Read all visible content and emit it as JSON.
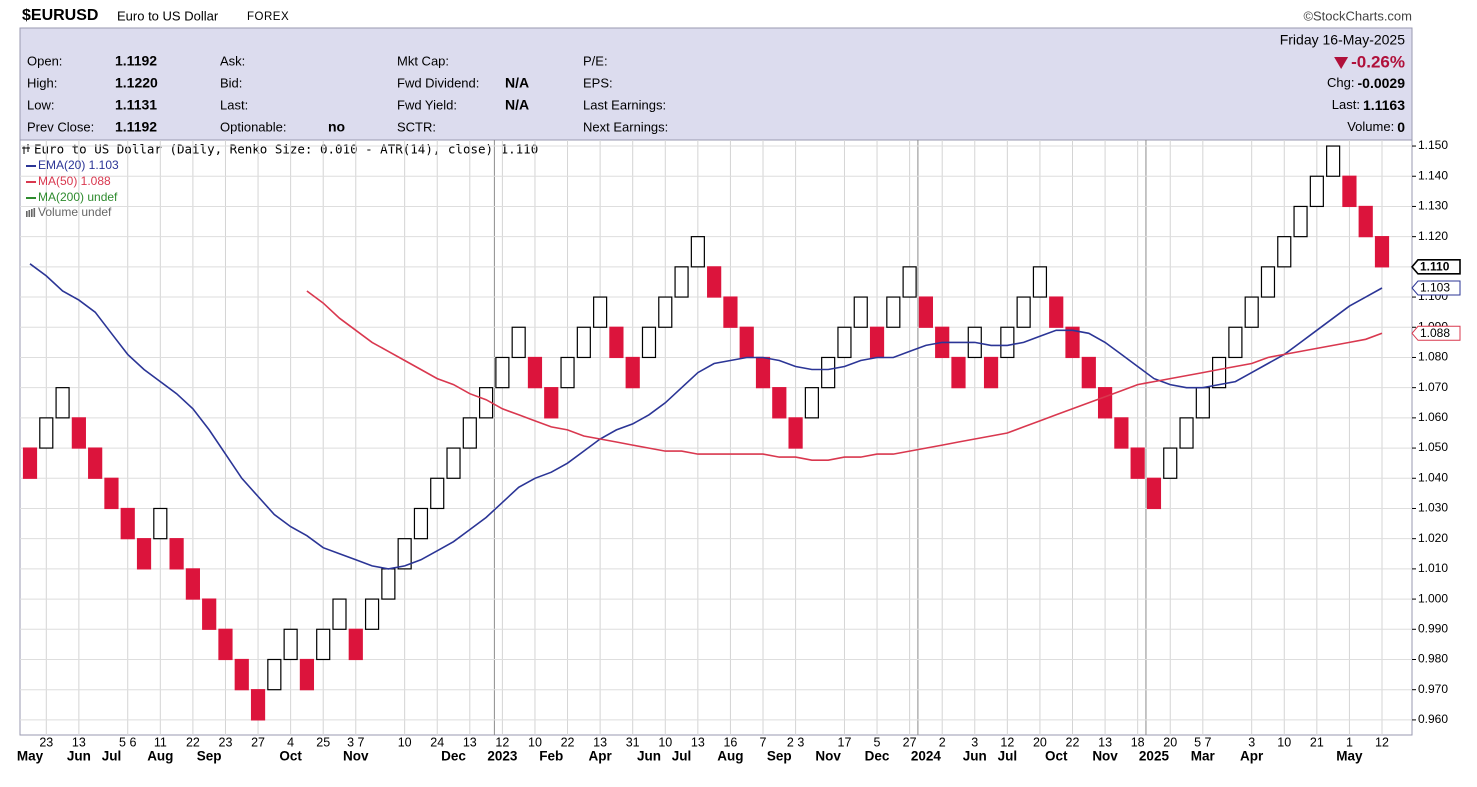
{
  "header": {
    "symbol": "$EURUSD",
    "name": "Euro to US Dollar",
    "exchange": "FOREX",
    "source": "©StockCharts.com"
  },
  "info": {
    "date": "Friday  16-May-2025",
    "change_pct": "-0.26%",
    "columns": [
      [
        {
          "label": "Open:",
          "value": "1.1192"
        },
        {
          "label": "High:",
          "value": "1.1220"
        },
        {
          "label": "Low:",
          "value": "1.1131"
        },
        {
          "label": "Prev Close:",
          "value": "1.1192"
        }
      ],
      [
        {
          "label": "Ask:"
        },
        {
          "label": "Bid:"
        },
        {
          "label": "Last:"
        },
        {
          "label": "Optionable:",
          "value": "no"
        }
      ],
      [
        {
          "label": "Mkt Cap:"
        },
        {
          "label": "Fwd Dividend:",
          "value": "N/A"
        },
        {
          "label": "Fwd Yield:",
          "value": "N/A"
        },
        {
          "label": "SCTR:"
        }
      ],
      [
        {
          "label": "P/E:"
        },
        {
          "label": "EPS:"
        },
        {
          "label": "Last Earnings:"
        },
        {
          "label": "Next Earnings:"
        }
      ]
    ],
    "summary": [
      {
        "label": "Chg:",
        "value": "-0.0029"
      },
      {
        "label": "Last:",
        "value": "1.1163"
      },
      {
        "label": "Volume:",
        "value": "0"
      }
    ]
  },
  "chart_data": {
    "type": "renko",
    "title": "Euro to US Dollar (Daily, Renko Size: 0.010 - ATR(14), close) 1.110",
    "last_label": "1.110",
    "up_color": "#ffffff",
    "down_color": "#dc143c",
    "categories": [
      null,
      "23",
      null,
      "13",
      null,
      null,
      "5 6",
      null,
      "11",
      null,
      "22",
      null,
      "23",
      null,
      "27",
      null,
      "4",
      null,
      "25",
      null,
      "3 7",
      null,
      null,
      "10",
      null,
      "24",
      null,
      "13",
      null,
      "12",
      null,
      "10",
      null,
      "22",
      null,
      "13",
      null,
      "31",
      null,
      "10",
      null,
      "13",
      null,
      "16",
      null,
      "7",
      null,
      "2 3",
      null,
      null,
      "17",
      null,
      "5",
      null,
      "27",
      null,
      "2",
      null,
      "3",
      null,
      "12",
      null,
      "20",
      null,
      "22",
      null,
      "13",
      null,
      "18",
      null,
      "20",
      null,
      "5 7",
      null,
      null,
      "3",
      null,
      "10",
      null,
      "21",
      null,
      "1",
      null,
      "12"
    ],
    "months": [
      "May",
      null,
      null,
      "Jun",
      null,
      "Jul",
      null,
      null,
      "Aug",
      null,
      null,
      "Sep",
      null,
      null,
      null,
      null,
      "Oct",
      null,
      null,
      null,
      "Nov",
      null,
      null,
      null,
      null,
      null,
      "Dec",
      null,
      null,
      "2023",
      null,
      null,
      "Feb",
      null,
      null,
      "Apr",
      null,
      null,
      "Jun",
      null,
      "Jul",
      null,
      null,
      "Aug",
      null,
      null,
      "Sep",
      null,
      null,
      "Nov",
      null,
      null,
      "Dec",
      null,
      null,
      "2024",
      null,
      null,
      "Jun",
      null,
      "Jul",
      null,
      null,
      "Oct",
      null,
      null,
      "Nov",
      null,
      null,
      "2025",
      null,
      null,
      "Mar",
      null,
      null,
      "Apr",
      null,
      null,
      null,
      null,
      null,
      "May",
      null,
      null
    ],
    "open": [
      1.05,
      1.05,
      1.06,
      1.06,
      1.05,
      1.04,
      1.03,
      1.02,
      1.02,
      1.02,
      1.01,
      1.0,
      0.99,
      0.98,
      0.97,
      0.97,
      0.98,
      0.98,
      0.98,
      0.99,
      0.99,
      0.99,
      1.0,
      1.01,
      1.02,
      1.03,
      1.04,
      1.05,
      1.06,
      1.07,
      1.08,
      1.08,
      1.07,
      1.07,
      1.08,
      1.09,
      1.09,
      1.08,
      1.08,
      1.09,
      1.1,
      1.11,
      1.11,
      1.1,
      1.09,
      1.08,
      1.07,
      1.06,
      1.06,
      1.07,
      1.08,
      1.09,
      1.09,
      1.09,
      1.1,
      1.1,
      1.09,
      1.08,
      1.08,
      1.08,
      1.08,
      1.09,
      1.1,
      1.1,
      1.09,
      1.08,
      1.07,
      1.06,
      1.05,
      1.04,
      1.04,
      1.05,
      1.06,
      1.07,
      1.08,
      1.09,
      1.1,
      1.11,
      1.12,
      1.13,
      1.14,
      1.14,
      1.13,
      1.12
    ],
    "close": [
      1.04,
      1.06,
      1.07,
      1.05,
      1.04,
      1.03,
      1.02,
      1.01,
      1.03,
      1.01,
      1.0,
      0.99,
      0.98,
      0.97,
      0.96,
      0.98,
      0.99,
      0.97,
      0.99,
      1.0,
      0.98,
      1.0,
      1.01,
      1.02,
      1.03,
      1.04,
      1.05,
      1.06,
      1.07,
      1.08,
      1.09,
      1.07,
      1.06,
      1.08,
      1.09,
      1.1,
      1.08,
      1.07,
      1.09,
      1.1,
      1.11,
      1.12,
      1.1,
      1.09,
      1.08,
      1.07,
      1.06,
      1.05,
      1.07,
      1.08,
      1.09,
      1.1,
      1.08,
      1.1,
      1.11,
      1.09,
      1.08,
      1.07,
      1.09,
      1.07,
      1.09,
      1.1,
      1.11,
      1.09,
      1.08,
      1.07,
      1.06,
      1.05,
      1.04,
      1.03,
      1.05,
      1.06,
      1.07,
      1.08,
      1.09,
      1.1,
      1.11,
      1.12,
      1.13,
      1.14,
      1.15,
      1.13,
      1.12,
      1.11
    ],
    "series": [
      {
        "name": "EMA(20) 1.103",
        "color": "#2b3596",
        "last_label": "1.103",
        "values": [
          1.111,
          1.107,
          1.102,
          1.099,
          1.095,
          1.088,
          1.081,
          1.076,
          1.072,
          1.068,
          1.063,
          1.056,
          1.048,
          1.04,
          1.034,
          1.028,
          1.024,
          1.021,
          1.017,
          1.015,
          1.013,
          1.011,
          1.01,
          1.011,
          1.013,
          1.016,
          1.019,
          1.023,
          1.027,
          1.032,
          1.037,
          1.04,
          1.042,
          1.045,
          1.049,
          1.053,
          1.056,
          1.058,
          1.061,
          1.065,
          1.07,
          1.075,
          1.078,
          1.079,
          1.08,
          1.08,
          1.079,
          1.077,
          1.076,
          1.076,
          1.077,
          1.079,
          1.08,
          1.08,
          1.082,
          1.084,
          1.085,
          1.085,
          1.085,
          1.084,
          1.084,
          1.085,
          1.087,
          1.089,
          1.089,
          1.088,
          1.085,
          1.081,
          1.077,
          1.073,
          1.071,
          1.07,
          1.07,
          1.071,
          1.072,
          1.075,
          1.078,
          1.081,
          1.085,
          1.089,
          1.093,
          1.097,
          1.1,
          1.103
        ]
      },
      {
        "name": "MA(50) 1.088",
        "color": "#d9384f",
        "last_label": "1.088",
        "values": [
          null,
          null,
          null,
          null,
          null,
          null,
          null,
          null,
          null,
          null,
          null,
          null,
          null,
          null,
          null,
          null,
          null,
          1.102,
          1.098,
          1.093,
          1.089,
          1.085,
          1.082,
          1.079,
          1.076,
          1.073,
          1.071,
          1.068,
          1.066,
          1.063,
          1.061,
          1.059,
          1.057,
          1.056,
          1.054,
          1.053,
          1.052,
          1.051,
          1.05,
          1.049,
          1.049,
          1.048,
          1.048,
          1.048,
          1.048,
          1.048,
          1.047,
          1.047,
          1.046,
          1.046,
          1.047,
          1.047,
          1.048,
          1.048,
          1.049,
          1.05,
          1.051,
          1.052,
          1.053,
          1.054,
          1.055,
          1.057,
          1.059,
          1.061,
          1.063,
          1.065,
          1.067,
          1.069,
          1.071,
          1.072,
          1.073,
          1.074,
          1.075,
          1.076,
          1.077,
          1.078,
          1.08,
          1.081,
          1.082,
          1.083,
          1.084,
          1.085,
          1.086,
          1.088
        ]
      }
    ],
    "other_legend": [
      {
        "name": "MA(200) undef",
        "color": "#2e8b2e"
      },
      {
        "name": "Volume undef",
        "color": "#666666"
      }
    ],
    "ylim": [
      0.955,
      1.152
    ],
    "yticks": [
      {
        "value": 0.96,
        "label": "0.960"
      },
      {
        "value": 0.97,
        "label": "0.970"
      },
      {
        "value": 0.98,
        "label": "0.980"
      },
      {
        "value": 0.99,
        "label": "0.990"
      },
      {
        "value": 1.0,
        "label": "1.000"
      },
      {
        "value": 1.01,
        "label": "1.010"
      },
      {
        "value": 1.02,
        "label": "1.020"
      },
      {
        "value": 1.03,
        "label": "1.030"
      },
      {
        "value": 1.04,
        "label": "1.040"
      },
      {
        "value": 1.05,
        "label": "1.050"
      },
      {
        "value": 1.06,
        "label": "1.060"
      },
      {
        "value": 1.07,
        "label": "1.070"
      },
      {
        "value": 1.08,
        "label": "1.080"
      },
      {
        "value": 1.09,
        "label": "1.090"
      },
      {
        "value": 1.1,
        "label": "1.100"
      },
      {
        "value": 1.11,
        "label": "1.110"
      },
      {
        "value": 1.12,
        "label": "1.120"
      },
      {
        "value": 1.13,
        "label": "1.130"
      },
      {
        "value": 1.14,
        "label": "1.140"
      },
      {
        "value": 1.15,
        "label": "1.150"
      }
    ],
    "grid": true
  }
}
